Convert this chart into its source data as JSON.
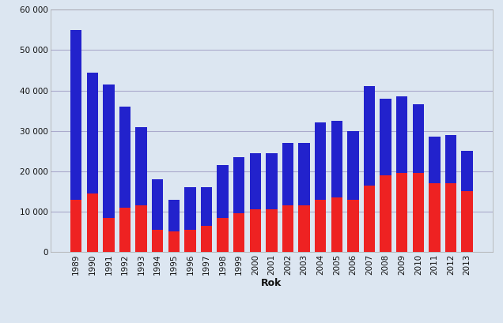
{
  "years": [
    1989,
    1990,
    1991,
    1992,
    1993,
    1994,
    1995,
    1996,
    1997,
    1998,
    1999,
    2000,
    2001,
    2002,
    2003,
    2004,
    2005,
    2006,
    2007,
    2008,
    2009,
    2010,
    2011,
    2012,
    2013
  ],
  "rodinne": [
    13000,
    14500,
    8500,
    11000,
    11500,
    5500,
    5000,
    5500,
    6500,
    8500,
    9500,
    10500,
    10500,
    11500,
    11500,
    13000,
    13500,
    13000,
    16500,
    19000,
    19500,
    19500,
    17000,
    17000,
    15000
  ],
  "bytove": [
    42000,
    30000,
    33000,
    25000,
    19500,
    12500,
    8000,
    10500,
    9500,
    13000,
    14000,
    14000,
    14000,
    15500,
    15500,
    19000,
    19000,
    17000,
    24500,
    19000,
    19000,
    17000,
    11500,
    12000,
    10000
  ],
  "color_rodinne": "#EE2222",
  "color_bytove": "#2222CC",
  "xlabel": "Rok",
  "ylim": [
    0,
    60000
  ],
  "yticks": [
    0,
    10000,
    20000,
    30000,
    40000,
    50000,
    60000
  ],
  "ytick_labels": [
    "0",
    "10 000",
    "20 000",
    "30 000",
    "40 000",
    "50 000",
    "60 000"
  ],
  "fig_bg_color": "#dce6f1",
  "plot_bg_color": "#dce6f1",
  "bar_width": 0.7,
  "grid_color": "#aaaacc",
  "tick_fontsize": 7.5,
  "xlabel_fontsize": 9
}
